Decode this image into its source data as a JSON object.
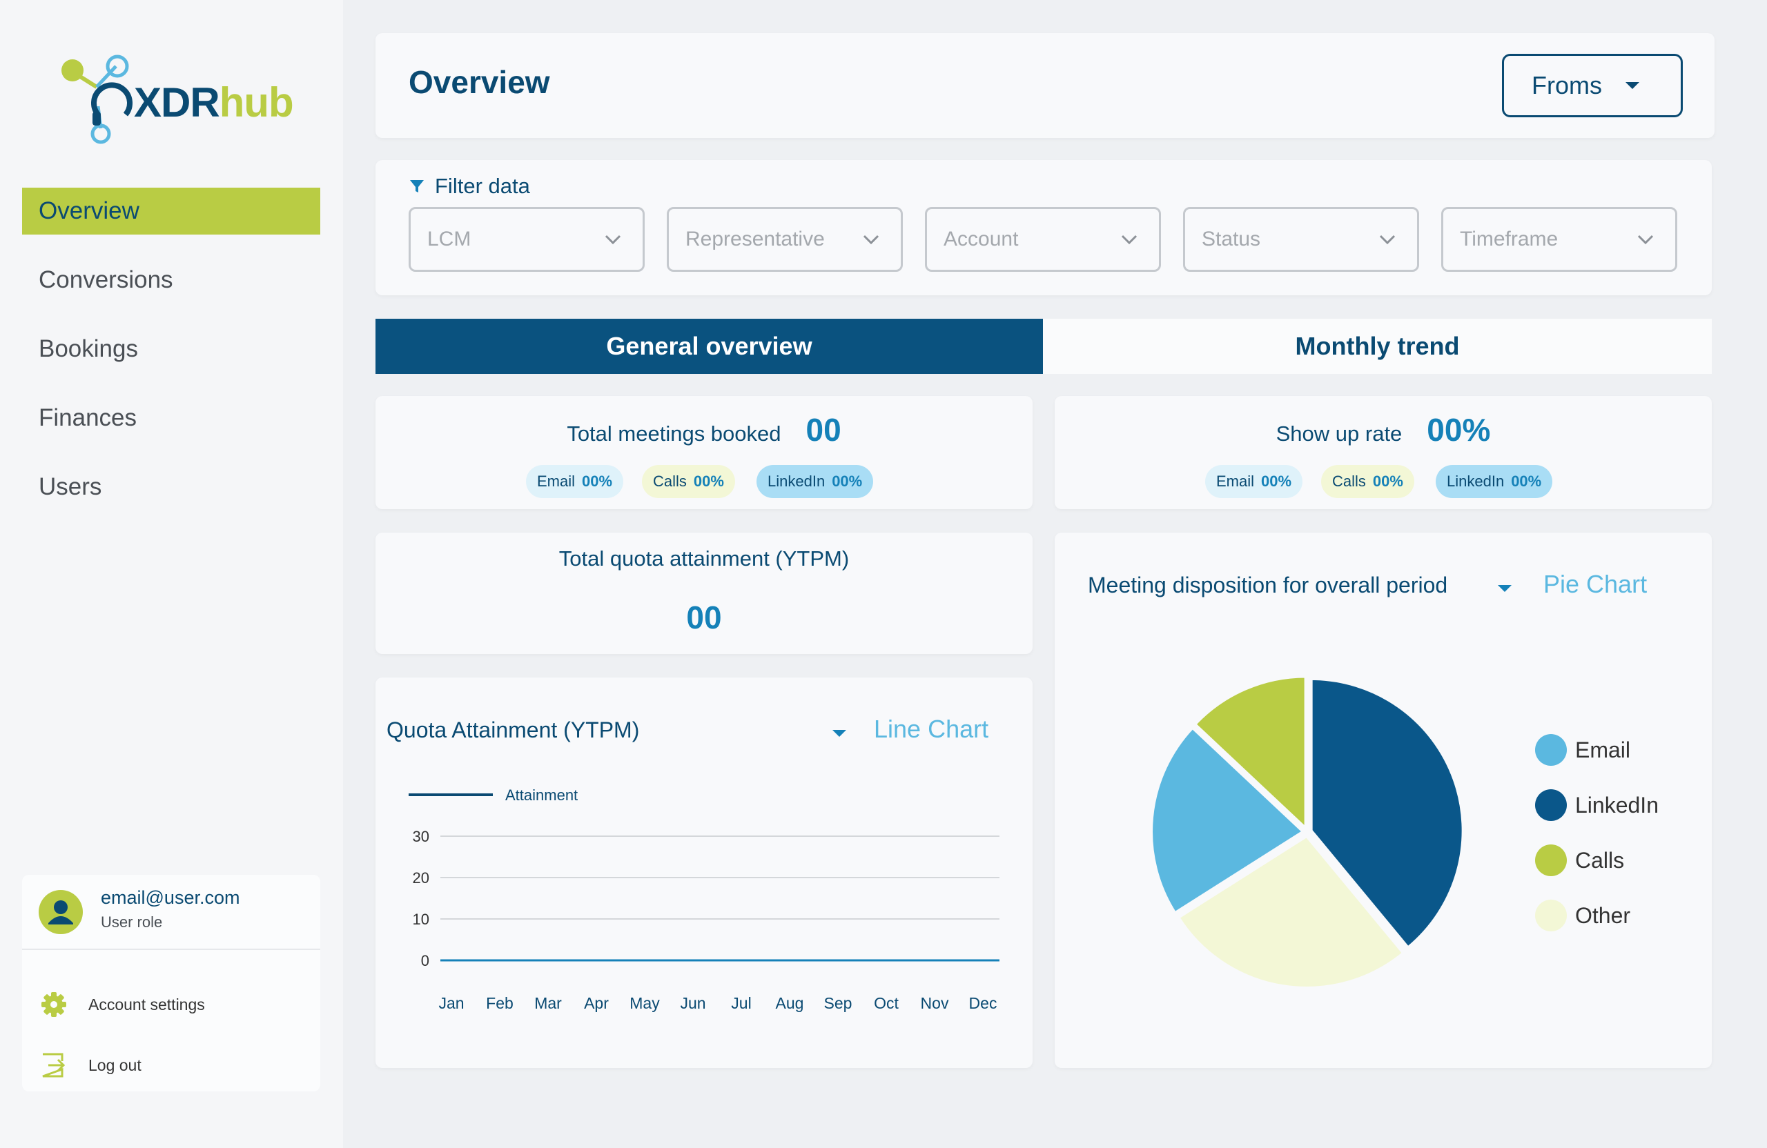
{
  "brand": {
    "name_part1": "XDR",
    "name_part2": "hub",
    "color_primary": "#0a4a72",
    "color_accent": "#b9cc44"
  },
  "sidebar": {
    "items": [
      {
        "label": "Overview",
        "active": true
      },
      {
        "label": "Conversions"
      },
      {
        "label": "Bookings"
      },
      {
        "label": "Finances"
      },
      {
        "label": "Users"
      }
    ],
    "user": {
      "email": "email@user.com",
      "role": "User role"
    },
    "menu": {
      "account_settings": "Account settings",
      "log_out": "Log out"
    }
  },
  "header": {
    "title": "Overview",
    "froms_label": "Froms"
  },
  "filters": {
    "label": "Filter data",
    "selects": [
      "LCM",
      "Representative",
      "Account",
      "Status",
      "Timeframe"
    ]
  },
  "tabs": [
    {
      "label": "General overview",
      "active": true
    },
    {
      "label": "Monthly trend"
    }
  ],
  "stats": {
    "meetings": {
      "label": "Total meetings booked",
      "value": "00",
      "pills": [
        {
          "label": "Email",
          "value": "00%"
        },
        {
          "label": "Calls",
          "value": "00%"
        },
        {
          "label": "LinkedIn",
          "value": "00%"
        }
      ]
    },
    "showup": {
      "label": "Show up rate",
      "value": "00%",
      "pills": [
        {
          "label": "Email",
          "value": "00%"
        },
        {
          "label": "Calls",
          "value": "00%"
        },
        {
          "label": "LinkedIn",
          "value": "00%"
        }
      ]
    },
    "quota": {
      "label": "Total quota attainment (YTPM)",
      "value": "00"
    }
  },
  "line_panel": {
    "heading": "Quota Attainment (YTPM)",
    "chart_type_label": "Line Chart"
  },
  "pie_panel": {
    "heading": "Meeting disposition for overall period",
    "chart_type_label": "Pie Chart"
  },
  "chart_data": [
    {
      "type": "line",
      "title": "",
      "categories": [
        "Jan",
        "Feb",
        "Mar",
        "Apr",
        "May",
        "Jun",
        "Jul",
        "Aug",
        "Sep",
        "Oct",
        "Nov",
        "Dec"
      ],
      "series": [
        {
          "name": "Attainment",
          "values": [
            0,
            0,
            0,
            0,
            0,
            0,
            0,
            0,
            0,
            0,
            0,
            0
          ],
          "color": "#0a4a72"
        }
      ],
      "yticks": [
        0,
        10,
        20,
        30
      ],
      "ylim": [
        0,
        30
      ],
      "grid": true,
      "legend": "top-left"
    },
    {
      "type": "pie",
      "title": "",
      "slices": [
        {
          "label": "Email",
          "value": 21,
          "color": "#5bb8e0"
        },
        {
          "label": "LinkedIn",
          "value": 39,
          "color": "#0a578a"
        },
        {
          "label": "Calls",
          "value": 13,
          "color": "#b9cc44"
        },
        {
          "label": "Other",
          "value": 27,
          "color": "#f3f7d6"
        }
      ],
      "legend": "right"
    }
  ]
}
